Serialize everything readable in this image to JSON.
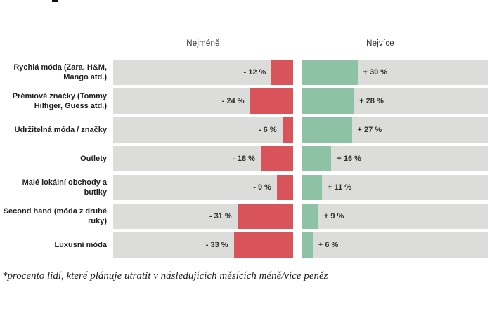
{
  "chart": {
    "group_headers": {
      "less": "Nejméně",
      "more": "Nejvíce"
    },
    "rows": [
      {
        "label": "Rychlá móda (Zara, H&M, Mango atd.)",
        "less_label": "- 12 %",
        "less_value": 12,
        "more_label": "+ 30 %",
        "more_value": 30
      },
      {
        "label": "Prémiové značky (Tommy Hilfiger, Guess atd.)",
        "less_label": "- 24 %",
        "less_value": 24,
        "more_label": "+ 28 %",
        "more_value": 28
      },
      {
        "label": "Udržitelná móda / značky",
        "less_label": "- 6 %",
        "less_value": 6,
        "more_label": "+ 27 %",
        "more_value": 27
      },
      {
        "label": "Outlety",
        "less_label": "- 18 %",
        "less_value": 18,
        "more_label": "+ 16 %",
        "more_value": 16
      },
      {
        "label": "Malé lokální obchody a butiky",
        "less_label": "- 9 %",
        "less_value": 9,
        "more_label": "+ 11 %",
        "more_value": 11
      },
      {
        "label": "Second hand (móda z druhé ruky)",
        "less_label": "- 31 %",
        "less_value": 31,
        "more_label": "+ 9 %",
        "more_value": 9
      },
      {
        "label": "Luxusní móda",
        "less_label": "- 33 %",
        "less_value": 33,
        "more_label": "+ 6 %",
        "more_value": 6
      }
    ],
    "colors": {
      "less_bar": "#d9545a",
      "more_bar": "#8dc2a5",
      "track": "#dcdcda"
    }
  },
  "footnote": "*procento lidí, které plánuje utratit v následujících měsících méně/více peněz",
  "chart_data": {
    "type": "bar",
    "subtype": "diverging-horizontal",
    "categories": [
      "Rychlá móda (Zara, H&M, Mango atd.)",
      "Prémiové značky (Tommy Hilfiger, Guess atd.)",
      "Udržitelná móda / značky",
      "Outlety",
      "Malé lokální obchody a butiky",
      "Second hand (móda z druhé ruky)",
      "Luxusní móda"
    ],
    "series": [
      {
        "name": "Nejméně",
        "values": [
          -12,
          -24,
          -6,
          -18,
          -9,
          -31,
          -33
        ],
        "color": "#d9545a"
      },
      {
        "name": "Nejvíce",
        "values": [
          30,
          28,
          27,
          16,
          11,
          9,
          6
        ],
        "color": "#8dc2a5"
      }
    ],
    "value_suffix": " %",
    "title": "",
    "xlabel": "",
    "ylabel": "",
    "grid": false,
    "legend_position": "column-headers-top",
    "footnote": "*procento lidí, které plánuje utratit v následujících měsících méně/více peněz"
  }
}
